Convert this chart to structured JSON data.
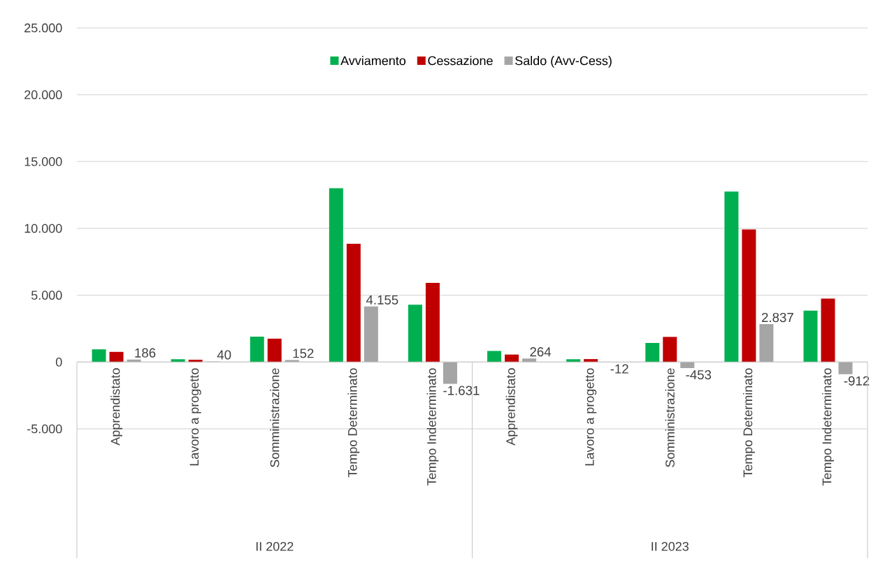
{
  "chart_data": {
    "type": "bar",
    "categories": [
      "Apprendistato",
      "Lavoro a progetto",
      "Somministrazione",
      "Tempo Determinato",
      "Tempo Indeterminato",
      "Apprendistato",
      "Lavoro a progetto",
      "Somministrazione",
      "Tempo Determinato",
      "Tempo Indeterminato"
    ],
    "annotations": [
      "II 2022",
      "II 2023"
    ],
    "series": [
      {
        "name": "Avviamento",
        "color": "#00b050",
        "values": [
          950,
          210,
          1900,
          13000,
          4290,
          830,
          210,
          1430,
          12760,
          3840
        ]
      },
      {
        "name": "Cessazione",
        "color": "#c00000",
        "values": [
          760,
          170,
          1750,
          8850,
          5920,
          560,
          220,
          1880,
          9920,
          4750
        ]
      },
      {
        "name": "Saldo (Avv-Cess)",
        "color": "#a5a5a5",
        "values": [
          186,
          40,
          152,
          4155,
          -1631,
          264,
          -12,
          -453,
          2837,
          -912
        ],
        "value_labels": [
          "186",
          "40",
          "152",
          "4.155",
          "-1.631",
          "264",
          "-12",
          "-453",
          "2.837",
          "-912"
        ]
      }
    ],
    "ylim": [
      -5000,
      25000
    ],
    "yticks": [
      {
        "value": -5000,
        "label": "-5.000"
      },
      0,
      {
        "value": 5000,
        "label": "5.000"
      },
      {
        "value": 10000,
        "label": "10.000"
      },
      {
        "value": 15000,
        "label": "15.000"
      },
      {
        "value": 20000,
        "label": "20.000"
      },
      {
        "value": 25000,
        "label": "25.000"
      }
    ],
    "grid": "y",
    "legend": "top"
  }
}
